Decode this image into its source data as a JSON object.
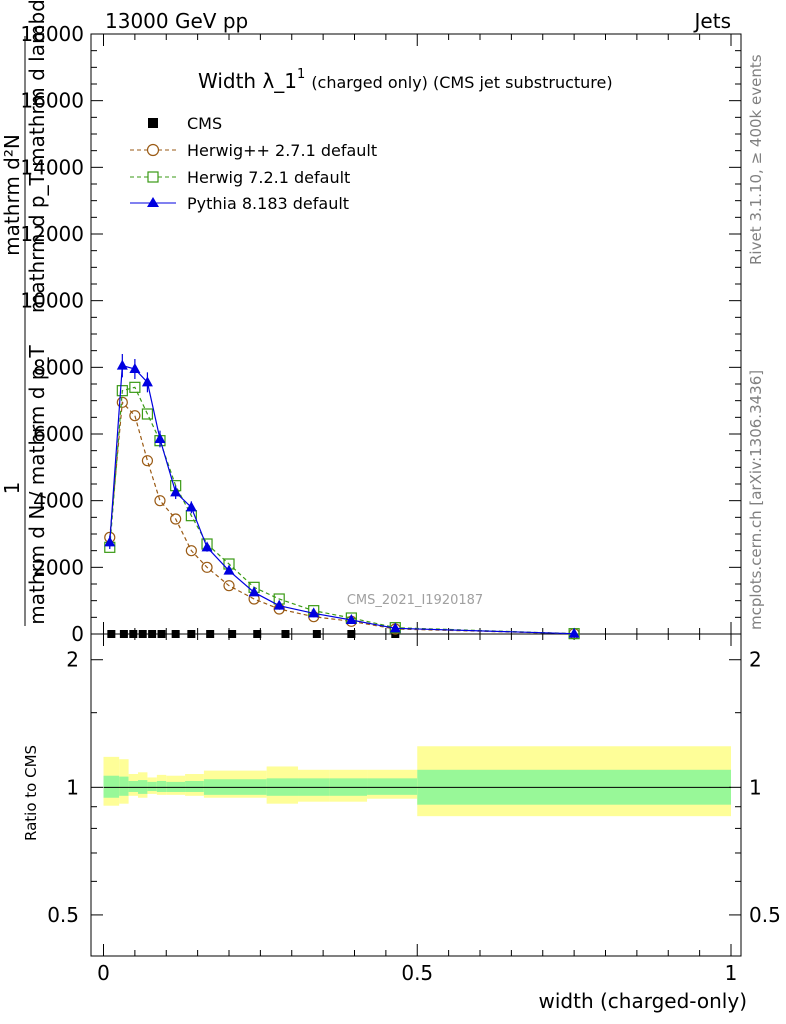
{
  "header": {
    "left": "13000 GeV pp",
    "right": "Jets"
  },
  "side": {
    "rivet": "Rivet 3.1.10, ≥ 400k events",
    "mcplots": "mcplots.cern.ch [arXiv:1306.3436]"
  },
  "watermark": "CMS_2021_I1920187",
  "chart_data": [
    {
      "type": "line",
      "title": "Width λ_1",
      "title_sup": "1",
      "title_suffix": "(charged only) (CMS jet substructure)",
      "ylabel_lines": [
        "mathrm d²N",
        "mathrm d p_T mathrm d lambda",
        "1",
        "mathrm d N / mathrm d p_T"
      ],
      "xlim": [
        0,
        1
      ],
      "ylim": [
        0,
        18000
      ],
      "yticks": [
        0,
        2000,
        4000,
        6000,
        8000,
        10000,
        12000,
        14000,
        16000,
        18000
      ],
      "ytick_labels": [
        "0",
        "2000",
        "4000",
        "6000",
        "8000",
        "10000",
        "12000",
        "14000",
        "16000",
        "18000"
      ],
      "legend": [
        "CMS",
        "Herwig++ 2.7.1 default",
        "Herwig 7.2.1 default",
        "Pythia 8.183 default"
      ],
      "series": [
        {
          "name": "CMS",
          "color": "#000000",
          "marker": "square-filled",
          "x": [
            0.0125,
            0.0325,
            0.0475,
            0.0625,
            0.0775,
            0.0925,
            0.115,
            0.14,
            0.17,
            0.205,
            0.245,
            0.29,
            0.34,
            0.395,
            0.465
          ],
          "y": [
            0,
            0,
            0,
            0,
            0,
            0,
            0,
            0,
            0,
            0,
            0,
            0,
            0,
            0,
            0
          ]
        },
        {
          "name": "Herwig++ 2.7.1 default",
          "color": "#9a5a14",
          "marker": "circle-open",
          "dash": "4,3",
          "x": [
            0.01,
            0.03,
            0.05,
            0.07,
            0.09,
            0.115,
            0.14,
            0.165,
            0.2,
            0.24,
            0.28,
            0.335,
            0.395,
            0.465,
            0.75
          ],
          "y": [
            2900,
            6950,
            6550,
            5200,
            4000,
            3450,
            2500,
            2000,
            1450,
            1050,
            750,
            520,
            380,
            150,
            10
          ]
        },
        {
          "name": "Herwig 7.2.1 default",
          "color": "#3a9a14",
          "marker": "square-open",
          "dash": "4,3",
          "x": [
            0.01,
            0.03,
            0.05,
            0.07,
            0.09,
            0.115,
            0.14,
            0.165,
            0.2,
            0.24,
            0.28,
            0.335,
            0.395,
            0.465,
            0.75
          ],
          "y": [
            2600,
            7300,
            7400,
            6600,
            5800,
            4450,
            3550,
            2700,
            2100,
            1400,
            1050,
            700,
            480,
            190,
            10
          ]
        },
        {
          "name": "Pythia 8.183 default",
          "color": "#0000e0",
          "marker": "triangle-filled",
          "x": [
            0.01,
            0.03,
            0.05,
            0.07,
            0.09,
            0.115,
            0.14,
            0.165,
            0.2,
            0.24,
            0.28,
            0.335,
            0.395,
            0.465,
            0.75
          ],
          "y": [
            2750,
            8050,
            7950,
            7550,
            5850,
            4250,
            3800,
            2600,
            1900,
            1250,
            850,
            620,
            420,
            170,
            10
          ],
          "err": [
            200,
            350,
            300,
            300,
            250,
            200,
            180,
            130,
            100,
            80,
            60,
            50,
            40,
            20,
            5
          ]
        }
      ]
    },
    {
      "type": "area",
      "ylabel": "Ratio to CMS",
      "xlabel": "width (charged-only)",
      "xlim": [
        0,
        1
      ],
      "ylim": [
        0.4,
        2.3
      ],
      "yscale": "log",
      "yticks": [
        0.5,
        1,
        2
      ],
      "ytick_labels": [
        "0.5",
        "1",
        "2"
      ],
      "xticks": [
        0,
        0.5,
        1
      ],
      "xtick_labels": [
        "0",
        "0.5",
        "1"
      ],
      "bands": {
        "edges": [
          0,
          0.025,
          0.04,
          0.055,
          0.07,
          0.085,
          0.1,
          0.13,
          0.16,
          0.26,
          0.31,
          0.36,
          0.42,
          0.5,
          1.0
        ],
        "stat_lo": [
          0.945,
          0.955,
          0.975,
          0.965,
          0.98,
          0.975,
          0.975,
          0.975,
          0.96,
          0.955,
          0.955,
          0.955,
          0.96,
          0.91
        ],
        "stat_hi": [
          1.065,
          1.06,
          1.035,
          1.04,
          1.03,
          1.035,
          1.03,
          1.035,
          1.045,
          1.05,
          1.05,
          1.05,
          1.05,
          1.1
        ],
        "tot_lo": [
          0.905,
          0.915,
          0.955,
          0.945,
          0.965,
          0.96,
          0.96,
          0.955,
          0.945,
          0.915,
          0.925,
          0.925,
          0.94,
          0.855
        ],
        "tot_hi": [
          1.18,
          1.165,
          1.075,
          1.085,
          1.055,
          1.07,
          1.065,
          1.075,
          1.095,
          1.12,
          1.1,
          1.1,
          1.1,
          1.25
        ]
      },
      "band_colors": {
        "stat": "#98f898",
        "total": "#fefe98"
      }
    }
  ]
}
